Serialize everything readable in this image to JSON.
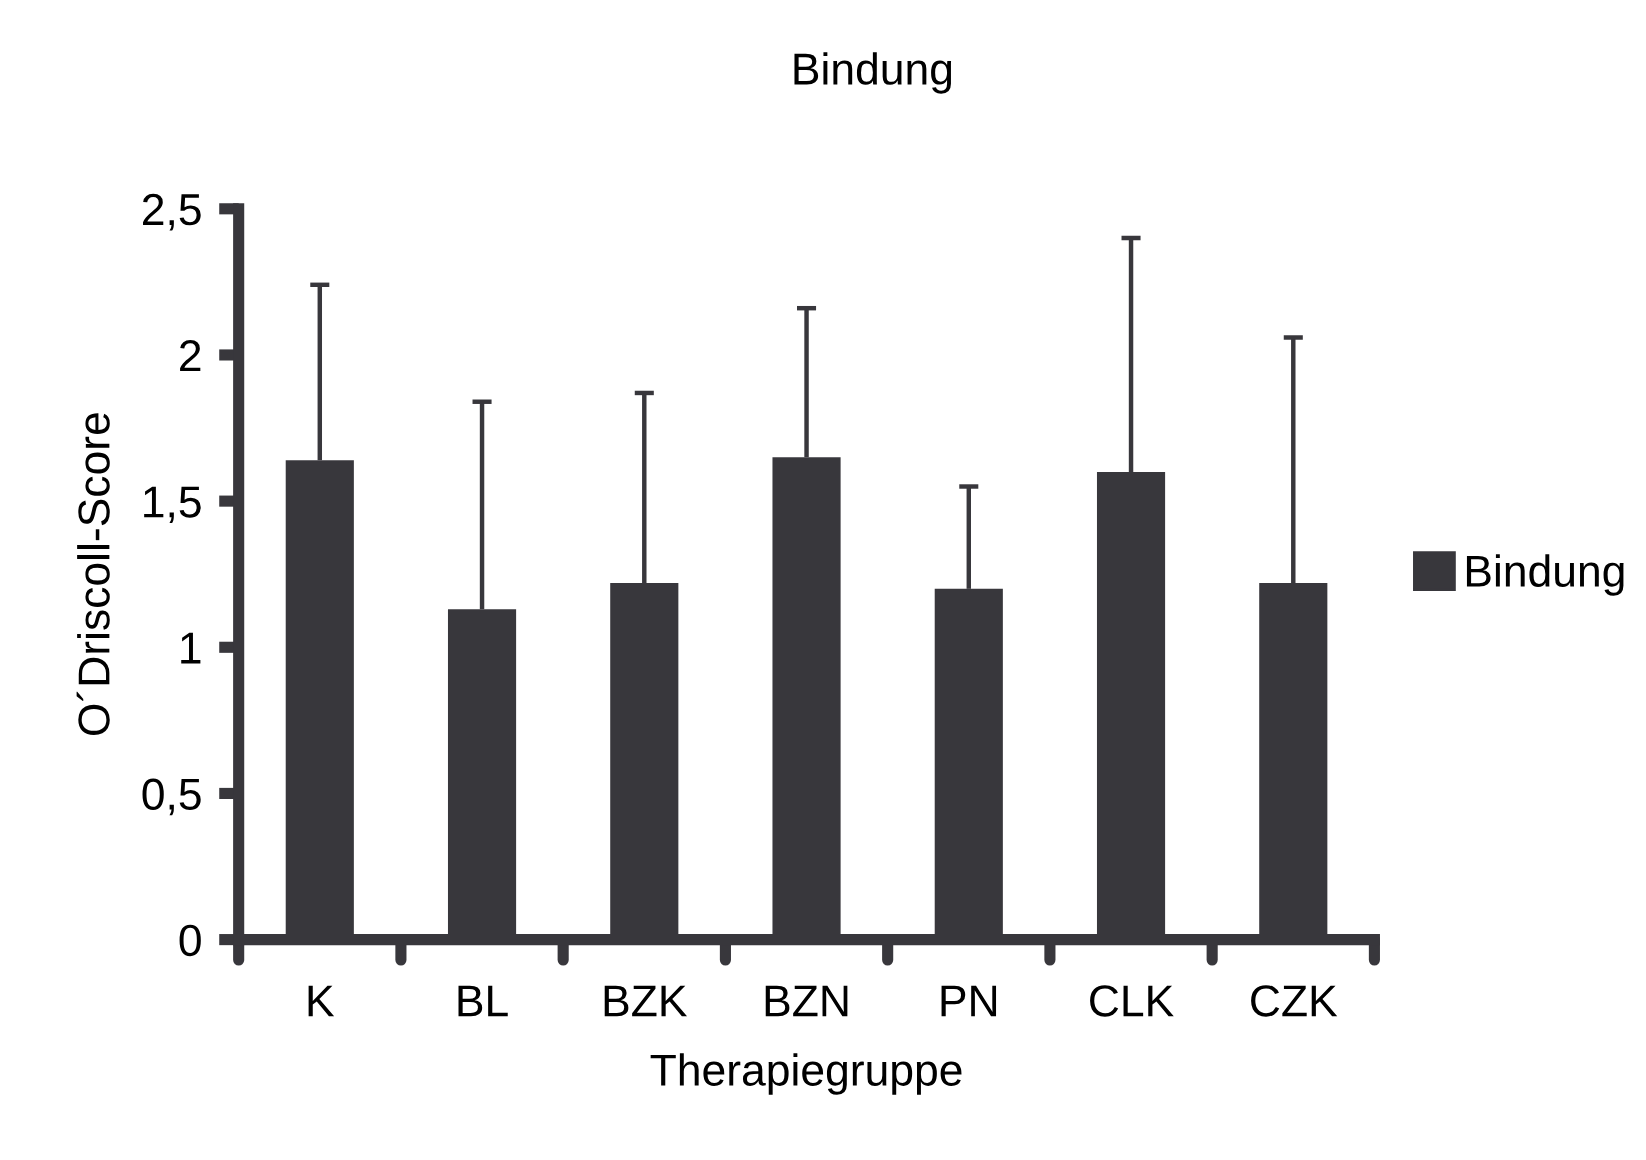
{
  "chart_data": {
    "type": "bar",
    "title": "Bindung",
    "xlabel": "Therapiegruppe",
    "ylabel": "O´Driscoll-Score",
    "categories": [
      "K",
      "BL",
      "BZK",
      "BZN",
      "PN",
      "CLK",
      "CZK"
    ],
    "series": [
      {
        "name": "Bindung",
        "color": "#38373c",
        "values": [
          1.64,
          1.13,
          1.22,
          1.65,
          1.2,
          1.6,
          1.22
        ],
        "errors": [
          [
            1.64,
            2.24
          ],
          [
            1.13,
            1.84
          ],
          [
            1.22,
            1.87
          ],
          [
            1.65,
            2.16
          ],
          [
            1.2,
            1.55
          ],
          [
            1.6,
            2.4
          ],
          [
            1.22,
            2.06
          ]
        ]
      }
    ],
    "ylim": [
      0,
      2.5
    ],
    "yticks": [
      0,
      {
        "value": 0.5,
        "label": "0,5"
      },
      1,
      {
        "value": 1.5,
        "label": "1,5"
      },
      2,
      {
        "value": 2.5,
        "label": "2,5"
      }
    ],
    "grid": false,
    "legend": "right"
  }
}
